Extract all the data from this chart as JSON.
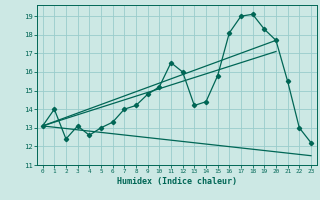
{
  "xlabel": "Humidex (Indice chaleur)",
  "bg_color": "#cce8e4",
  "grid_color": "#99cccc",
  "line_color": "#006655",
  "xlim": [
    -0.5,
    23.5
  ],
  "ylim": [
    11,
    19.6
  ],
  "yticks": [
    11,
    12,
    13,
    14,
    15,
    16,
    17,
    18,
    19
  ],
  "xticks": [
    0,
    1,
    2,
    3,
    4,
    5,
    6,
    7,
    8,
    9,
    10,
    11,
    12,
    13,
    14,
    15,
    16,
    17,
    18,
    19,
    20,
    21,
    22,
    23
  ],
  "main_x": [
    0,
    1,
    2,
    3,
    4,
    5,
    6,
    7,
    8,
    9,
    10,
    11,
    12,
    13,
    14,
    15,
    16,
    17,
    18,
    19,
    20,
    21,
    22,
    23
  ],
  "main_y": [
    13.1,
    14.0,
    12.4,
    13.1,
    12.6,
    13.0,
    13.3,
    14.0,
    14.2,
    14.8,
    15.2,
    16.5,
    16.0,
    14.2,
    14.4,
    15.8,
    18.1,
    19.0,
    19.1,
    18.3,
    17.7,
    15.5,
    13.0,
    12.2
  ],
  "line1_x": [
    0,
    20
  ],
  "line1_y": [
    13.1,
    17.7
  ],
  "line2_x": [
    0,
    23
  ],
  "line2_y": [
    13.1,
    11.5
  ],
  "line3_x": [
    0,
    20
  ],
  "line3_y": [
    13.1,
    17.1
  ]
}
